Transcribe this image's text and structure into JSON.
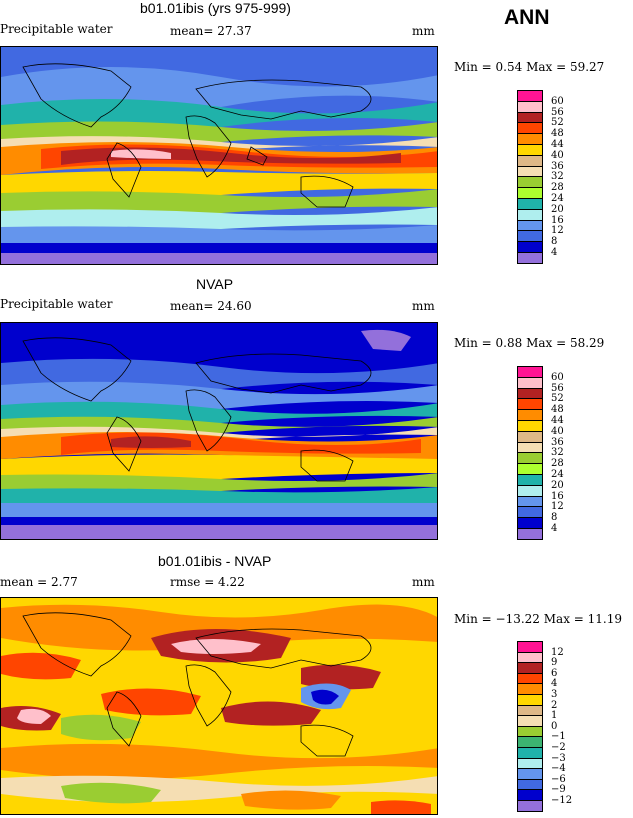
{
  "header": {
    "season": "ANN"
  },
  "panels": [
    {
      "title": "b01.01ibis (yrs 975-999)",
      "var_label": "Precipitable water",
      "stat_text": "mean=   27.37",
      "units": "mm",
      "minmax": "Min =    0.54 Max =   59.27",
      "palette": "abs",
      "levels": [
        "60",
        "56",
        "52",
        "48",
        "44",
        "40",
        "36",
        "32",
        "28",
        "24",
        "20",
        "16",
        "12",
        "8",
        "4"
      ]
    },
    {
      "title": "NVAP",
      "var_label": "Precipitable water",
      "stat_text": "mean=   24.60",
      "units": "mm",
      "minmax": "Min =    0.88 Max =   58.29",
      "palette": "abs",
      "levels": [
        "60",
        "56",
        "52",
        "48",
        "44",
        "40",
        "36",
        "32",
        "28",
        "24",
        "20",
        "16",
        "12",
        "8",
        "4"
      ]
    },
    {
      "title": "b01.01ibis - NVAP",
      "var_label": "mean =    2.77",
      "stat_text": "rmse =    4.22",
      "units": "mm",
      "minmax": "Min = −13.22 Max =   11.19",
      "palette": "diff",
      "levels": [
        "12",
        "9",
        "6",
        "4",
        "3",
        "2",
        "1",
        "0",
        "−1",
        "−2",
        "−3",
        "−4",
        "−6",
        "−9",
        "−12"
      ]
    }
  ],
  "colors": {
    "abs": [
      "#ff1493",
      "#ffc0cb",
      "#b22222",
      "#ff4500",
      "#ff8c00",
      "#ffd700",
      "#deb887",
      "#f5deb3",
      "#9acd32",
      "#adff2f",
      "#20b2aa",
      "#afeeee",
      "#6495ed",
      "#4169e1",
      "#0000cd",
      "#9370db"
    ],
    "diff": [
      "#ff1493",
      "#ffc0cb",
      "#b22222",
      "#ff4500",
      "#ff8c00",
      "#ffd700",
      "#deb887",
      "#f5deb3",
      "#9acd32",
      "#3cb371",
      "#20b2aa",
      "#afeeee",
      "#6495ed",
      "#4169e1",
      "#0000cd",
      "#9370db"
    ]
  }
}
